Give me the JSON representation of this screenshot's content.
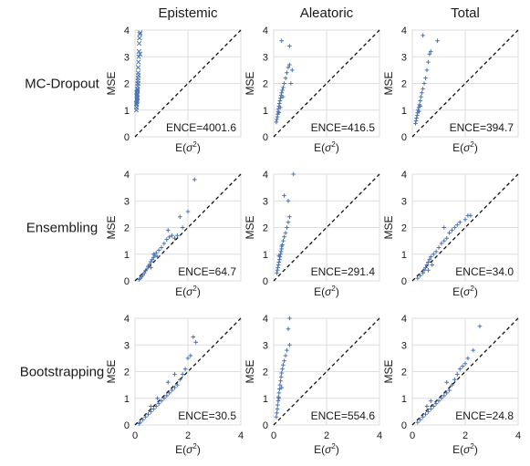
{
  "column_titles": [
    "Epistemic",
    "Aleatoric",
    "Total"
  ],
  "row_titles": [
    "MC-Dropout",
    "Ensembling",
    "Bootstrapping"
  ],
  "chart_data": [
    {
      "type": "scatter",
      "row": "MC-Dropout",
      "column": "Epistemic",
      "xlabel": "E(σ²)",
      "ylabel": "MSE",
      "xlim": [
        0,
        4
      ],
      "ylim": [
        0,
        4
      ],
      "xticks": [
        0,
        2,
        4
      ],
      "yticks": [
        0,
        1,
        2,
        3,
        4
      ],
      "grid": true,
      "marker": "x",
      "annotation": "ENCE=4001.6",
      "reference_line": "y=x",
      "points": [
        [
          0.05,
          1.0
        ],
        [
          0.06,
          1.1
        ],
        [
          0.06,
          1.2
        ],
        [
          0.07,
          1.3
        ],
        [
          0.07,
          1.4
        ],
        [
          0.08,
          1.5
        ],
        [
          0.08,
          1.6
        ],
        [
          0.09,
          1.7
        ],
        [
          0.09,
          1.8
        ],
        [
          0.1,
          1.9
        ],
        [
          0.1,
          2.0
        ],
        [
          0.11,
          2.1
        ],
        [
          0.11,
          2.2
        ],
        [
          0.12,
          2.4
        ],
        [
          0.12,
          2.6
        ],
        [
          0.13,
          2.8
        ],
        [
          0.14,
          3.0
        ],
        [
          0.15,
          3.2
        ],
        [
          0.16,
          3.5
        ],
        [
          0.17,
          3.7
        ],
        [
          0.18,
          3.85
        ],
        [
          0.2,
          3.9
        ],
        [
          0.05,
          1.25
        ],
        [
          0.07,
          1.55
        ],
        [
          0.08,
          1.35
        ],
        [
          0.09,
          1.45
        ],
        [
          0.06,
          1.65
        ],
        [
          0.1,
          1.75
        ],
        [
          0.12,
          2.0
        ],
        [
          0.13,
          2.3
        ],
        [
          0.19,
          3.1
        ]
      ]
    },
    {
      "type": "scatter",
      "row": "MC-Dropout",
      "column": "Aleatoric",
      "xlabel": "E(σ²)",
      "ylabel": "MSE",
      "xlim": [
        0,
        4
      ],
      "ylim": [
        0,
        4
      ],
      "xticks": [
        0,
        2,
        4
      ],
      "yticks": [
        0,
        1,
        2,
        3,
        4
      ],
      "grid": true,
      "marker": "+",
      "annotation": "ENCE=416.5",
      "reference_line": "y=x",
      "points": [
        [
          0.1,
          0.55
        ],
        [
          0.12,
          0.65
        ],
        [
          0.14,
          0.75
        ],
        [
          0.15,
          0.85
        ],
        [
          0.17,
          0.95
        ],
        [
          0.18,
          1.05
        ],
        [
          0.2,
          1.15
        ],
        [
          0.22,
          1.25
        ],
        [
          0.24,
          1.35
        ],
        [
          0.26,
          1.45
        ],
        [
          0.28,
          1.55
        ],
        [
          0.3,
          1.65
        ],
        [
          0.33,
          1.75
        ],
        [
          0.36,
          1.85
        ],
        [
          0.4,
          2.0
        ],
        [
          0.45,
          2.2
        ],
        [
          0.5,
          2.4
        ],
        [
          0.55,
          2.6
        ],
        [
          0.6,
          2.7
        ],
        [
          0.7,
          2.5
        ],
        [
          0.3,
          3.6
        ],
        [
          0.6,
          3.4
        ],
        [
          0.65,
          2.0
        ],
        [
          0.2,
          0.9
        ],
        [
          0.25,
          1.1
        ],
        [
          0.35,
          1.5
        ]
      ]
    },
    {
      "type": "scatter",
      "row": "MC-Dropout",
      "column": "Total",
      "xlabel": "E(σ²)",
      "ylabel": "MSE",
      "xlim": [
        0,
        4
      ],
      "ylim": [
        0,
        4
      ],
      "xticks": [
        0,
        2,
        4
      ],
      "yticks": [
        0,
        1,
        2,
        3,
        4
      ],
      "grid": true,
      "marker": "+",
      "annotation": "ENCE=394.7",
      "reference_line": "y=x",
      "points": [
        [
          0.12,
          0.5
        ],
        [
          0.14,
          0.6
        ],
        [
          0.16,
          0.7
        ],
        [
          0.18,
          0.8
        ],
        [
          0.2,
          0.9
        ],
        [
          0.22,
          1.0
        ],
        [
          0.24,
          1.1
        ],
        [
          0.27,
          1.2
        ],
        [
          0.3,
          1.35
        ],
        [
          0.33,
          1.5
        ],
        [
          0.36,
          1.65
        ],
        [
          0.4,
          1.8
        ],
        [
          0.45,
          2.0
        ],
        [
          0.5,
          2.2
        ],
        [
          0.55,
          2.5
        ],
        [
          0.6,
          2.8
        ],
        [
          0.65,
          3.1
        ],
        [
          0.7,
          3.2
        ],
        [
          0.4,
          3.8
        ],
        [
          0.95,
          3.6
        ],
        [
          0.25,
          0.95
        ],
        [
          0.3,
          1.15
        ]
      ]
    },
    {
      "type": "scatter",
      "row": "Ensembling",
      "column": "Epistemic",
      "xlabel": "E(σ²)",
      "ylabel": "MSE",
      "xlim": [
        0,
        4
      ],
      "ylim": [
        0,
        4
      ],
      "xticks": [
        0,
        2,
        4
      ],
      "yticks": [
        0,
        1,
        2,
        3,
        4
      ],
      "grid": true,
      "marker": "+",
      "annotation": "ENCE=64.7",
      "reference_line": "y=x",
      "points": [
        [
          0.15,
          0.05
        ],
        [
          0.2,
          0.1
        ],
        [
          0.25,
          0.15
        ],
        [
          0.3,
          0.22
        ],
        [
          0.35,
          0.3
        ],
        [
          0.4,
          0.38
        ],
        [
          0.45,
          0.45
        ],
        [
          0.5,
          0.55
        ],
        [
          0.55,
          0.62
        ],
        [
          0.6,
          0.72
        ],
        [
          0.65,
          0.8
        ],
        [
          0.7,
          0.88
        ],
        [
          0.75,
          0.95
        ],
        [
          0.8,
          1.05
        ],
        [
          0.9,
          1.15
        ],
        [
          1.0,
          1.25
        ],
        [
          1.1,
          1.4
        ],
        [
          1.2,
          1.55
        ],
        [
          1.3,
          1.65
        ],
        [
          1.4,
          1.7
        ],
        [
          1.5,
          1.6
        ],
        [
          1.6,
          1.7
        ],
        [
          1.8,
          2.0
        ],
        [
          2.0,
          2.6
        ],
        [
          2.25,
          3.8
        ],
        [
          1.7,
          2.4
        ],
        [
          1.25,
          1.9
        ],
        [
          0.6,
          0.5
        ],
        [
          0.7,
          1.0
        ],
        [
          0.85,
          0.9
        ]
      ]
    },
    {
      "type": "scatter",
      "row": "Ensembling",
      "column": "Aleatoric",
      "xlabel": "E(σ²)",
      "ylabel": "MSE",
      "xlim": [
        0,
        4
      ],
      "ylim": [
        0,
        4
      ],
      "xticks": [
        0,
        2,
        4
      ],
      "yticks": [
        0,
        1,
        2,
        3,
        4
      ],
      "grid": true,
      "marker": "+",
      "annotation": "ENCE=291.4",
      "reference_line": "y=x",
      "points": [
        [
          0.12,
          0.3
        ],
        [
          0.14,
          0.4
        ],
        [
          0.16,
          0.5
        ],
        [
          0.18,
          0.6
        ],
        [
          0.2,
          0.7
        ],
        [
          0.22,
          0.8
        ],
        [
          0.24,
          0.9
        ],
        [
          0.26,
          1.0
        ],
        [
          0.28,
          1.1
        ],
        [
          0.3,
          1.2
        ],
        [
          0.33,
          1.35
        ],
        [
          0.36,
          1.5
        ],
        [
          0.4,
          1.65
        ],
        [
          0.45,
          1.8
        ],
        [
          0.5,
          2.0
        ],
        [
          0.55,
          2.2
        ],
        [
          0.6,
          2.4
        ],
        [
          0.4,
          3.2
        ],
        [
          0.55,
          3.0
        ],
        [
          0.75,
          4.0
        ],
        [
          0.2,
          0.95
        ],
        [
          0.3,
          1.3
        ]
      ]
    },
    {
      "type": "scatter",
      "row": "Ensembling",
      "column": "Total",
      "xlabel": "E(σ²)",
      "ylabel": "MSE",
      "xlim": [
        0,
        4
      ],
      "ylim": [
        0,
        4
      ],
      "xticks": [
        0,
        2,
        4
      ],
      "yticks": [
        0,
        1,
        2,
        3,
        4
      ],
      "grid": true,
      "marker": "+",
      "annotation": "ENCE=34.0",
      "reference_line": "y=x",
      "points": [
        [
          0.2,
          0.1
        ],
        [
          0.3,
          0.2
        ],
        [
          0.4,
          0.3
        ],
        [
          0.45,
          0.4
        ],
        [
          0.5,
          0.5
        ],
        [
          0.55,
          0.6
        ],
        [
          0.6,
          0.7
        ],
        [
          0.65,
          0.8
        ],
        [
          0.7,
          0.9
        ],
        [
          0.8,
          1.0
        ],
        [
          0.9,
          1.1
        ],
        [
          1.0,
          1.25
        ],
        [
          1.1,
          1.4
        ],
        [
          1.2,
          1.5
        ],
        [
          1.3,
          1.6
        ],
        [
          1.4,
          1.8
        ],
        [
          1.5,
          1.9
        ],
        [
          1.6,
          2.0
        ],
        [
          1.7,
          2.1
        ],
        [
          1.8,
          2.2
        ],
        [
          2.0,
          2.3
        ],
        [
          2.1,
          2.45
        ],
        [
          2.2,
          2.45
        ],
        [
          1.2,
          2.0
        ],
        [
          0.6,
          0.4
        ],
        [
          0.75,
          0.6
        ]
      ]
    },
    {
      "type": "scatter",
      "row": "Bootstrapping",
      "column": "Epistemic",
      "xlabel": "E(σ²)",
      "ylabel": "MSE",
      "xlim": [
        0,
        4
      ],
      "ylim": [
        0,
        4
      ],
      "xticks": [
        0,
        2,
        4
      ],
      "yticks": [
        0,
        1,
        2,
        3,
        4
      ],
      "grid": true,
      "marker": "+",
      "annotation": "ENCE=30.5",
      "reference_line": "y=x",
      "points": [
        [
          0.15,
          0.05
        ],
        [
          0.2,
          0.1
        ],
        [
          0.3,
          0.2
        ],
        [
          0.4,
          0.3
        ],
        [
          0.5,
          0.4
        ],
        [
          0.6,
          0.5
        ],
        [
          0.7,
          0.6
        ],
        [
          0.8,
          0.7
        ],
        [
          0.9,
          0.8
        ],
        [
          1.0,
          0.9
        ],
        [
          1.1,
          1.0
        ],
        [
          1.2,
          1.1
        ],
        [
          1.3,
          1.2
        ],
        [
          1.4,
          1.3
        ],
        [
          1.5,
          1.4
        ],
        [
          1.6,
          1.5
        ],
        [
          1.7,
          1.7
        ],
        [
          1.8,
          1.9
        ],
        [
          1.9,
          2.1
        ],
        [
          2.0,
          2.5
        ],
        [
          2.1,
          2.6
        ],
        [
          2.2,
          3.3
        ],
        [
          2.3,
          3.1
        ],
        [
          1.5,
          1.9
        ],
        [
          1.25,
          1.6
        ],
        [
          0.85,
          1.0
        ],
        [
          0.6,
          0.7
        ]
      ]
    },
    {
      "type": "scatter",
      "row": "Bootstrapping",
      "column": "Aleatoric",
      "xlabel": "E(σ²)",
      "ylabel": "MSE",
      "xlim": [
        0,
        4
      ],
      "ylim": [
        0,
        4
      ],
      "xticks": [
        0,
        2,
        4
      ],
      "yticks": [
        0,
        1,
        2,
        3,
        4
      ],
      "grid": true,
      "marker": "+",
      "annotation": "ENCE=554.6",
      "reference_line": "y=x",
      "points": [
        [
          0.1,
          0.3
        ],
        [
          0.12,
          0.45
        ],
        [
          0.14,
          0.6
        ],
        [
          0.15,
          0.75
        ],
        [
          0.17,
          0.9
        ],
        [
          0.18,
          1.05
        ],
        [
          0.2,
          1.2
        ],
        [
          0.22,
          1.35
        ],
        [
          0.24,
          1.5
        ],
        [
          0.26,
          1.65
        ],
        [
          0.28,
          1.8
        ],
        [
          0.3,
          1.95
        ],
        [
          0.33,
          2.1
        ],
        [
          0.36,
          2.25
        ],
        [
          0.4,
          2.4
        ],
        [
          0.45,
          2.6
        ],
        [
          0.5,
          2.8
        ],
        [
          0.6,
          3.0
        ],
        [
          0.55,
          3.6
        ],
        [
          0.6,
          4.0
        ],
        [
          0.2,
          1.0
        ],
        [
          0.3,
          1.4
        ]
      ]
    },
    {
      "type": "scatter",
      "row": "Bootstrapping",
      "column": "Total",
      "xlabel": "E(σ²)",
      "ylabel": "MSE",
      "xlim": [
        0,
        4
      ],
      "ylim": [
        0,
        4
      ],
      "xticks": [
        0,
        2,
        4
      ],
      "yticks": [
        0,
        1,
        2,
        3,
        4
      ],
      "grid": true,
      "marker": "+",
      "annotation": "ENCE=24.8",
      "reference_line": "y=x",
      "points": [
        [
          0.2,
          0.1
        ],
        [
          0.3,
          0.2
        ],
        [
          0.4,
          0.3
        ],
        [
          0.5,
          0.4
        ],
        [
          0.6,
          0.5
        ],
        [
          0.7,
          0.6
        ],
        [
          0.8,
          0.7
        ],
        [
          0.9,
          0.8
        ],
        [
          1.0,
          0.9
        ],
        [
          1.1,
          1.0
        ],
        [
          1.2,
          1.1
        ],
        [
          1.3,
          1.2
        ],
        [
          1.4,
          1.3
        ],
        [
          1.5,
          1.5
        ],
        [
          1.6,
          1.7
        ],
        [
          1.7,
          1.9
        ],
        [
          1.8,
          2.1
        ],
        [
          1.9,
          2.2
        ],
        [
          2.0,
          2.3
        ],
        [
          2.1,
          2.5
        ],
        [
          2.3,
          2.8
        ],
        [
          2.55,
          3.7
        ],
        [
          1.3,
          1.6
        ],
        [
          0.7,
          0.9
        ],
        [
          0.55,
          0.7
        ]
      ]
    }
  ]
}
